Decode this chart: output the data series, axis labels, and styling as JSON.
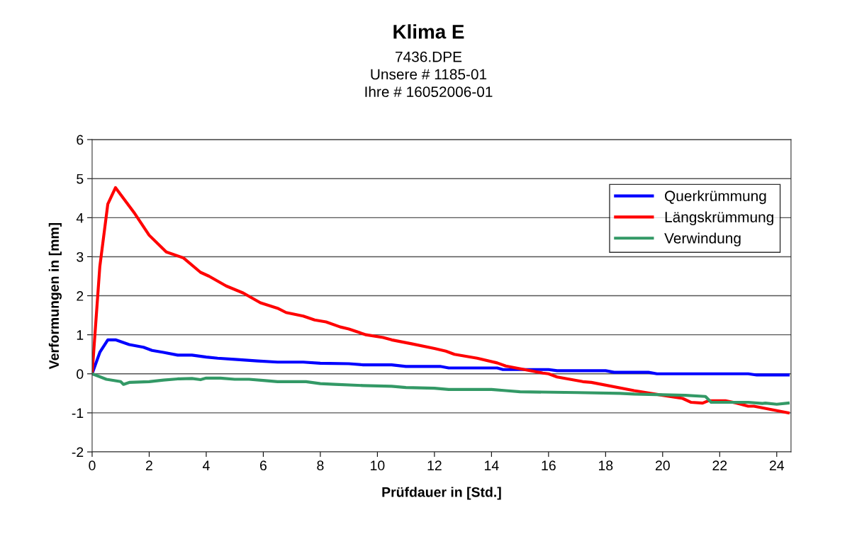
{
  "chart_data": {
    "type": "line",
    "title": "Klima E",
    "subtitle": "7436.DPE\nUnsere # 1185-01\nIhre # 16052006-01",
    "xlabel": "Prüfdauer in [Std.]",
    "ylabel": "Verformungen in [mm]",
    "xlim": [
      0,
      24.5
    ],
    "xticks": [
      0,
      2,
      4,
      6,
      8,
      10,
      12,
      14,
      16,
      18,
      20,
      22,
      24
    ],
    "ylim": [
      -2,
      6
    ],
    "yticks": [
      -2,
      -1,
      0,
      1,
      2,
      3,
      4,
      5,
      6
    ],
    "grid": "y",
    "legend": "top right",
    "marker": "none",
    "line_style": "solid",
    "series": [
      {
        "name": "Querkrümmung",
        "color": "#0000ff",
        "x": [
          0,
          0.27,
          0.55,
          0.82,
          1.3,
          1.8,
          2.1,
          2.5,
          3,
          3.5,
          4,
          4.4,
          5,
          5.8,
          6.5,
          7.4,
          8,
          9,
          9.5,
          10.5,
          11,
          12.2,
          12.5,
          14.2,
          14.4,
          16,
          16.3,
          18,
          18.3,
          19.5,
          19.8,
          23,
          23.3,
          24.4
        ],
        "values": [
          0,
          0.55,
          0.87,
          0.87,
          0.75,
          0.68,
          0.6,
          0.55,
          0.48,
          0.48,
          0.43,
          0.4,
          0.37,
          0.33,
          0.3,
          0.3,
          0.27,
          0.26,
          0.23,
          0.23,
          0.19,
          0.19,
          0.15,
          0.15,
          0.11,
          0.11,
          0.08,
          0.08,
          0.04,
          0.04,
          0.0,
          0.0,
          -0.03,
          -0.03
        ]
      },
      {
        "name": "Längskrümmung",
        "color": "#ff0000",
        "x": [
          0,
          0.27,
          0.55,
          0.82,
          1.5,
          2,
          2.6,
          3.2,
          3.8,
          4.1,
          4.7,
          5.3,
          5.9,
          6.5,
          6.8,
          7.4,
          7.8,
          8.2,
          8.7,
          9,
          9.6,
          10.2,
          10.5,
          11.2,
          12,
          12.4,
          12.7,
          13.5,
          14.2,
          14.5,
          15.8,
          16,
          16.3,
          17.2,
          17.5,
          19,
          20,
          20.7,
          21,
          21.4,
          21.6,
          22.2,
          22.6,
          23,
          23.2,
          24.4
        ],
        "values": [
          0,
          2.75,
          4.35,
          4.77,
          4.1,
          3.55,
          3.12,
          2.97,
          2.6,
          2.5,
          2.25,
          2.07,
          1.82,
          1.68,
          1.57,
          1.48,
          1.38,
          1.33,
          1.2,
          1.15,
          1.0,
          0.93,
          0.87,
          0.77,
          0.65,
          0.58,
          0.5,
          0.4,
          0.28,
          0.2,
          0.02,
          0.0,
          -0.08,
          -0.2,
          -0.22,
          -0.43,
          -0.55,
          -0.63,
          -0.73,
          -0.75,
          -0.69,
          -0.69,
          -0.75,
          -0.83,
          -0.83,
          -1.0
        ]
      },
      {
        "name": "Verwindung",
        "color": "#339966",
        "x": [
          0,
          0.5,
          1,
          1.1,
          1.3,
          2,
          2.5,
          3,
          3.5,
          3.8,
          4,
          4.5,
          5,
          5.5,
          6,
          6.5,
          7.5,
          8,
          8.5,
          9.5,
          10.5,
          11,
          12,
          12.5,
          14,
          14.5,
          15,
          17,
          18.5,
          19,
          20.8,
          21.5,
          21.7,
          23,
          23.5,
          23.6,
          24,
          24.4
        ],
        "values": [
          0,
          -0.14,
          -0.2,
          -0.27,
          -0.22,
          -0.2,
          -0.16,
          -0.13,
          -0.12,
          -0.15,
          -0.11,
          -0.11,
          -0.14,
          -0.14,
          -0.17,
          -0.2,
          -0.2,
          -0.25,
          -0.27,
          -0.3,
          -0.32,
          -0.35,
          -0.37,
          -0.4,
          -0.4,
          -0.43,
          -0.46,
          -0.48,
          -0.5,
          -0.52,
          -0.55,
          -0.58,
          -0.73,
          -0.73,
          -0.76,
          -0.75,
          -0.78,
          -0.75
        ]
      }
    ]
  }
}
